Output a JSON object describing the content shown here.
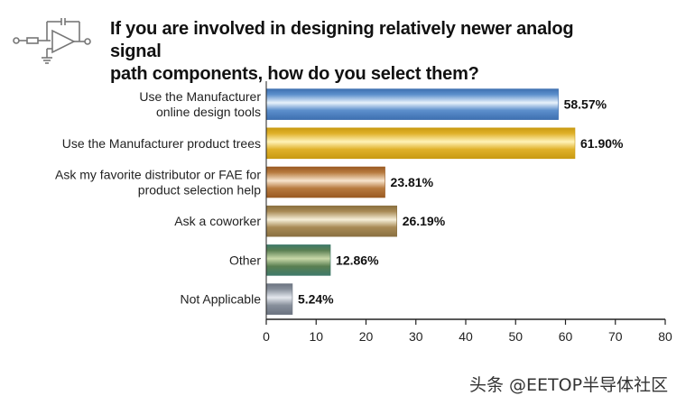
{
  "title": {
    "line1": "If you are involved in designing relatively newer analog signal",
    "line2": "path components, how do you select them?"
  },
  "watermark": "头条 @EETOP半导体社区",
  "chart_data": {
    "type": "bar",
    "orientation": "horizontal",
    "title": "If you are involved in designing relatively newer analog signal path components, how do you select them?",
    "categories": [
      [
        "Use the Manufacturer",
        "online design tools"
      ],
      [
        "Use the Manufacturer product trees"
      ],
      [
        "Ask my favorite distributor or FAE for",
        "product selection help"
      ],
      [
        "Ask a coworker"
      ],
      [
        "Other"
      ],
      [
        "Not Applicable"
      ]
    ],
    "values": [
      58.57,
      61.9,
      23.81,
      26.19,
      12.86,
      5.24
    ],
    "value_labels": [
      "58.57%",
      "61.90%",
      "23.81%",
      "26.19%",
      "12.86%",
      "5.24%"
    ],
    "bar_colors": [
      [
        "#3d6fb0",
        "#e8f2fb",
        "#5c8fcc"
      ],
      [
        "#c99a12",
        "#fff3b8",
        "#e0b12a"
      ],
      [
        "#9a5a22",
        "#f7e4cc",
        "#b77a3e"
      ],
      [
        "#8a7040",
        "#f6efd8",
        "#a88a55"
      ],
      [
        "#3f7a6a",
        "#c8d8a8",
        "#5a7f52"
      ],
      [
        "#6b7380",
        "#e4e8ee",
        "#88909c"
      ]
    ],
    "xlim": [
      0,
      80
    ],
    "xticks": [
      0,
      10,
      20,
      30,
      40,
      50,
      60,
      70,
      80
    ],
    "grid": false
  }
}
